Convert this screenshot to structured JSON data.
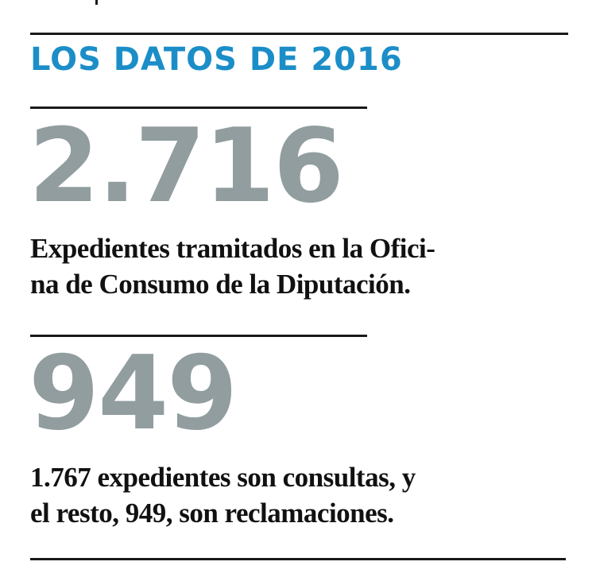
{
  "header": {
    "title": "LOS DATOS DE 2016"
  },
  "stats": [
    {
      "figure": "2.716",
      "description_lines": [
        "Expedientes tramitados en la Ofici-",
        "na de Consumo de la Diputación."
      ]
    },
    {
      "figure": "949",
      "description_lines": [
        "1.767 expedientes son consultas, y",
        "el resto, 949, son reclamaciones."
      ]
    }
  ]
}
